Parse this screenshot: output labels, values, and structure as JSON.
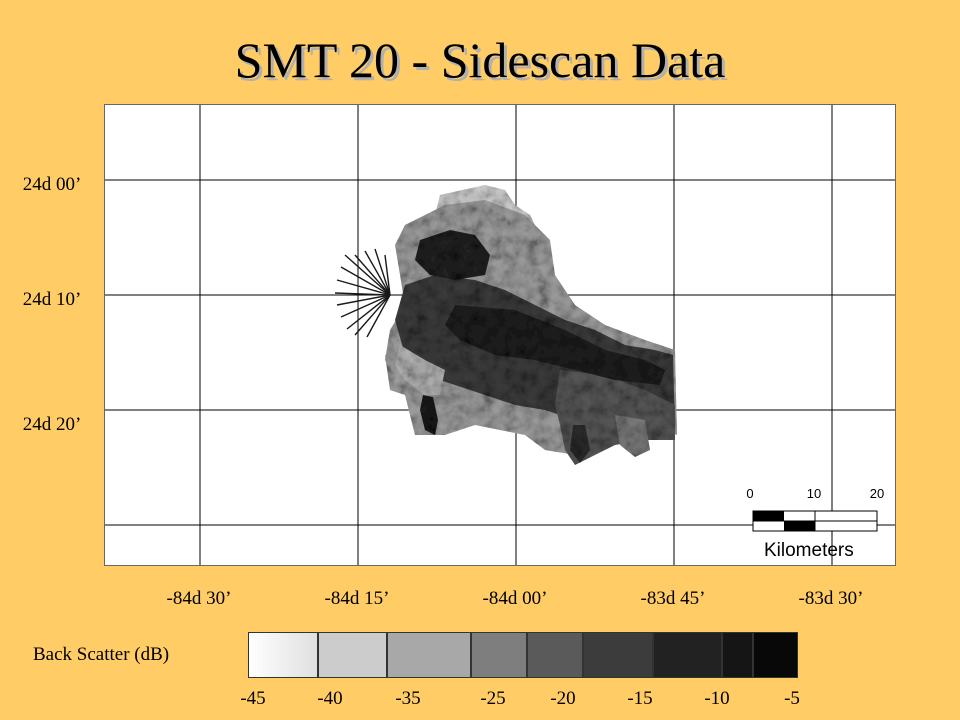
{
  "title": "SMT 20 - Sidescan Data",
  "map": {
    "latitude_labels": [
      "24d 00’",
      "24d 10’",
      "24d 20’"
    ],
    "longitude_labels": [
      "-84d 30’",
      "-84d 15’",
      "-84d 00’",
      "-83d 45’",
      "-83d 30’"
    ],
    "scalebar": {
      "ticks": [
        "0",
        "10",
        "20"
      ],
      "units": "Kilometers"
    }
  },
  "legend": {
    "title": "Back Scatter (dB)",
    "labels": [
      "-45",
      "-40",
      "-35",
      "-25",
      "-20",
      "-15",
      "-10",
      "-5"
    ],
    "colors": [
      "#F2F2F2",
      "#CCCCCC",
      "#A8A8A8",
      "#7E7E7E",
      "#5A5A5A",
      "#3C3C3C",
      "#222222",
      "#080808"
    ]
  },
  "colors": {
    "background": "#FFCC66",
    "map_background": "#FFFFFF",
    "grid": "#000000"
  }
}
